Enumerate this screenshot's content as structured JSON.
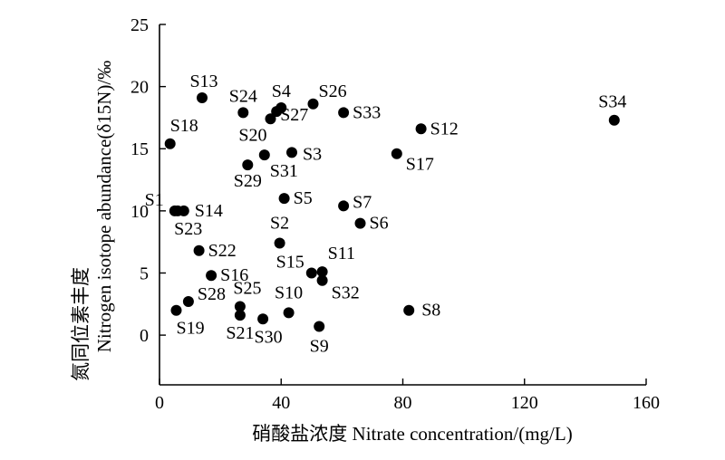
{
  "chart_data": {
    "type": "scatter",
    "xlabel": "硝酸盐浓度 Nitrate concentration/(mg/L)",
    "ylabel_cn": "氮同位素丰度",
    "ylabel_en": "Nitrogen isotope abundance(δ15N)/‰",
    "xlim": [
      0,
      160
    ],
    "ylim": [
      -4,
      25
    ],
    "xticks": [
      0,
      40,
      80,
      120,
      160
    ],
    "yticks": [
      0,
      5,
      10,
      15,
      20,
      25
    ],
    "xtick_labels": [
      "0",
      "40",
      "80",
      "120",
      "160"
    ],
    "ytick_labels": [
      "0",
      "5",
      "10",
      "15",
      "20",
      "25"
    ],
    "points": [
      {
        "label": "S1",
        "x": 5.0,
        "y": 10.0
      },
      {
        "label": "S2",
        "x": 39.5,
        "y": 7.4
      },
      {
        "label": "S3",
        "x": 43.5,
        "y": 14.7
      },
      {
        "label": "S4",
        "x": 40.0,
        "y": 18.3
      },
      {
        "label": "S5",
        "x": 41.0,
        "y": 11.0
      },
      {
        "label": "S6",
        "x": 66.0,
        "y": 9.0
      },
      {
        "label": "S7",
        "x": 60.5,
        "y": 10.4
      },
      {
        "label": "S8",
        "x": 82.0,
        "y": 2.0
      },
      {
        "label": "S9",
        "x": 52.5,
        "y": 0.7
      },
      {
        "label": "S10",
        "x": 42.5,
        "y": 1.8
      },
      {
        "label": "S11",
        "x": 53.5,
        "y": 5.1
      },
      {
        "label": "S12",
        "x": 86.0,
        "y": 16.6
      },
      {
        "label": "S13",
        "x": 14.0,
        "y": 19.1
      },
      {
        "label": "S14",
        "x": 8.0,
        "y": 10.0
      },
      {
        "label": "S15",
        "x": 50.0,
        "y": 5.0
      },
      {
        "label": "S16",
        "x": 17.0,
        "y": 4.8
      },
      {
        "label": "S17",
        "x": 78.0,
        "y": 14.6
      },
      {
        "label": "S18",
        "x": 3.5,
        "y": 15.4
      },
      {
        "label": "S19",
        "x": 5.5,
        "y": 2.0
      },
      {
        "label": "S20",
        "x": 36.5,
        "y": 17.4
      },
      {
        "label": "S21",
        "x": 26.5,
        "y": 1.6
      },
      {
        "label": "S22",
        "x": 13.0,
        "y": 6.8
      },
      {
        "label": "S23",
        "x": 6.0,
        "y": 10.0
      },
      {
        "label": "S24",
        "x": 27.5,
        "y": 17.9
      },
      {
        "label": "S25",
        "x": 26.5,
        "y": 2.3
      },
      {
        "label": "S26",
        "x": 50.5,
        "y": 18.6
      },
      {
        "label": "S27",
        "x": 38.5,
        "y": 18.0
      },
      {
        "label": "S28",
        "x": 9.5,
        "y": 2.7
      },
      {
        "label": "S29",
        "x": 29.0,
        "y": 13.7
      },
      {
        "label": "S30",
        "x": 34.0,
        "y": 1.3
      },
      {
        "label": "S31",
        "x": 34.5,
        "y": 14.5
      },
      {
        "label": "S32",
        "x": 53.5,
        "y": 4.4
      },
      {
        "label": "S33",
        "x": 60.5,
        "y": 17.9
      },
      {
        "label": "S34",
        "x": 149.5,
        "y": 17.3
      }
    ]
  }
}
